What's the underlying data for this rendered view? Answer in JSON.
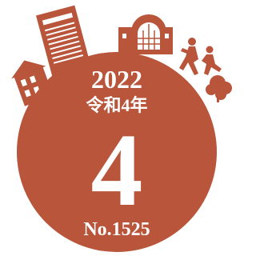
{
  "badge": {
    "year": "2022",
    "era": "令和4年",
    "month": "4",
    "issue": "No.1525"
  }
}
